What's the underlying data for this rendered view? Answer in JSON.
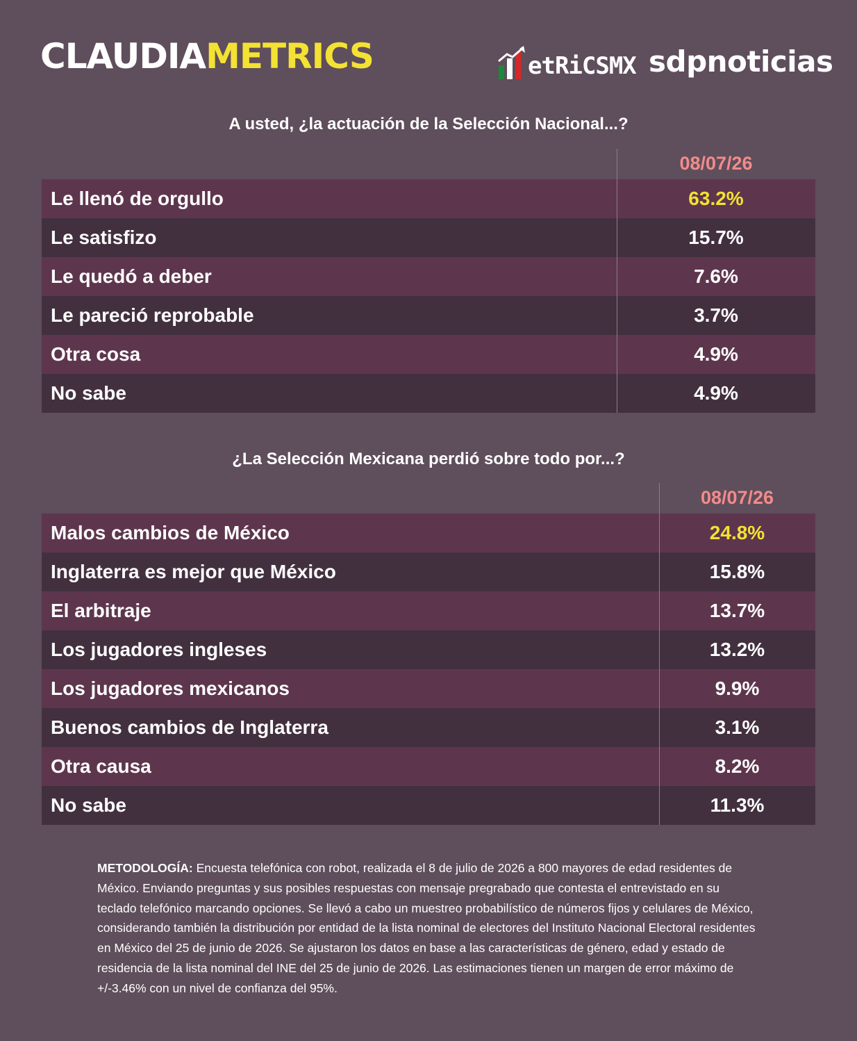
{
  "header": {
    "brand_part1": "CLAUDIA",
    "brand_part2": "METRICS",
    "metricsmx_logo": "etRiCSMX",
    "sdp_logo": "sdpnoticias",
    "brand_colors": {
      "white": "#ffffff",
      "yellow": "#f3e233",
      "green": "#1a8a3a",
      "red": "#d62828"
    }
  },
  "chart_data": [
    {
      "type": "table",
      "title": "A usted, ¿la actuación de la Selección Nacional...?",
      "column": "08/07/26",
      "rows": [
        {
          "label": "Le llenó de orgullo",
          "display": "63.2%",
          "value": 63.2,
          "highlight": true
        },
        {
          "label": "Le satisfizo",
          "display": "15.7%",
          "value": 15.7
        },
        {
          "label": "Le quedó a deber",
          "display": "7.6%",
          "value": 7.6
        },
        {
          "label": "Le pareció reprobable",
          "display": "3.7%",
          "value": 3.7
        },
        {
          "label": "Otra cosa",
          "display": "4.9%",
          "value": 4.9
        },
        {
          "label": "No sabe",
          "display": "4.9%",
          "value": 4.9
        }
      ]
    },
    {
      "type": "table",
      "title": "¿La Selección Mexicana perdió sobre todo por...?",
      "column": "08/07/26",
      "rows": [
        {
          "label": "Malos cambios de México",
          "display": "24.8%",
          "value": 24.8,
          "highlight": true
        },
        {
          "label": "Inglaterra es mejor que México",
          "display": "15.8%",
          "value": 15.8
        },
        {
          "label": "El arbitraje",
          "display": "13.7%",
          "value": 13.7
        },
        {
          "label": "Los jugadores ingleses",
          "display": "13.2%",
          "value": 13.2
        },
        {
          "label": "Los jugadores mexicanos",
          "display": "9.9%",
          "value": 9.9
        },
        {
          "label": "Buenos cambios de Inglaterra",
          "display": "3.1%",
          "value": 3.1
        },
        {
          "label": "Otra causa",
          "display": "8.2%",
          "value": 8.2
        },
        {
          "label": "No sabe",
          "display": "11.3%",
          "value": 11.3
        }
      ]
    }
  ],
  "methodology": {
    "label": "METODOLOGÍA:",
    "text": " Encuesta telefónica con robot, realizada el 8 de julio de 2026 a 800 mayores de edad residentes de México. Enviando preguntas y sus posibles respuestas con mensaje pregrabado que contesta el entrevistado en su teclado telefónico marcando opciones. Se llevó a cabo un muestreo probabilístico de números fijos y celulares de México, considerando también la distribución por entidad de la lista nominal de electores del Instituto Nacional Electoral residentes en México del 25 de junio de 2026. Se ajustaron los datos en base a las características de género, edad y estado de residencia de la lista nominal del INE del 25 de junio de 2026. Las estimaciones tienen un margen de error máximo de +/-3.46% con un nivel de confianza del 95%."
  }
}
